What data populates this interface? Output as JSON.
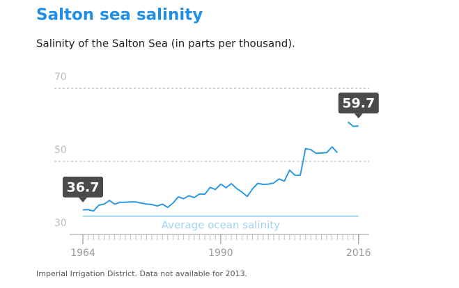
{
  "chart_data": {
    "type": "line",
    "title": "Salton sea salinity",
    "subtitle": "Salinity of the Salton Sea (in parts per thousand).",
    "source": "Imperial Irrigation District. Data not available for 2013.",
    "x": [
      1964,
      1965,
      1966,
      1967,
      1968,
      1969,
      1970,
      1971,
      1972,
      1973,
      1974,
      1975,
      1976,
      1977,
      1978,
      1979,
      1980,
      1981,
      1982,
      1983,
      1984,
      1985,
      1986,
      1987,
      1988,
      1989,
      1990,
      1991,
      1992,
      1993,
      1994,
      1995,
      1996,
      1997,
      1998,
      1999,
      2000,
      2001,
      2002,
      2003,
      2004,
      2005,
      2006,
      2007,
      2008,
      2009,
      2010,
      2011,
      2012,
      2013,
      2014,
      2015,
      2016
    ],
    "series": [
      {
        "name": "Salinity",
        "color": "#2b9ae0",
        "values": [
          36.7,
          36.8,
          36.4,
          38,
          38.3,
          39.3,
          38.3,
          38.8,
          38.8,
          38.9,
          38.9,
          38.6,
          38.3,
          38.2,
          37.8,
          38.3,
          37.4,
          38.6,
          40.3,
          39.8,
          40.6,
          40.1,
          41.1,
          41.0,
          42.9,
          42.3,
          43.8,
          42.8,
          43.9,
          42.6,
          41.6,
          40.4,
          42.5,
          44.0,
          43.7,
          43.8,
          44.1,
          45.2,
          44.6,
          47.6,
          46.2,
          46.2,
          53.5,
          53.2,
          52.2,
          52.3,
          52.4,
          54.0,
          52.4,
          null,
          60.8,
          59.6,
          59.7
        ]
      }
    ],
    "reference_line": {
      "value": 35,
      "label": "Average ocean salinity",
      "color": "#9fd4f2"
    },
    "xlim": [
      1961.5,
      2018
    ],
    "xticks": [
      1964,
      1990,
      2016
    ],
    "ylim": [
      30,
      70
    ],
    "yticks": [
      30,
      50,
      70
    ],
    "grid": true
  }
}
